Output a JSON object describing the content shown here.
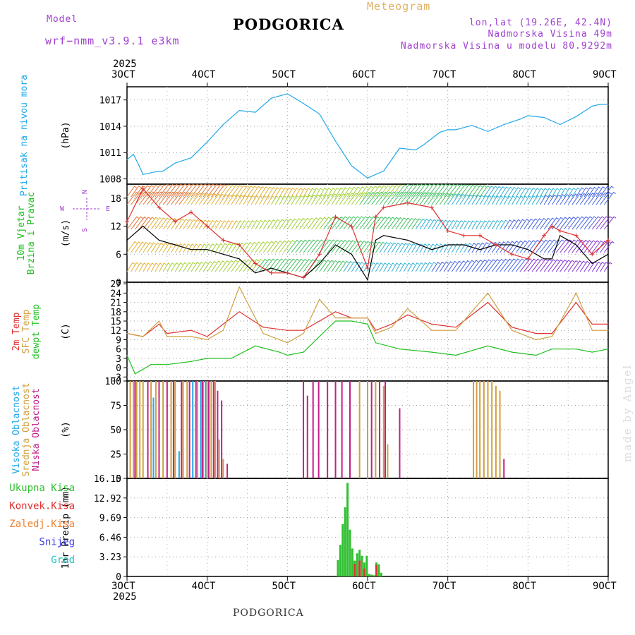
{
  "header": {
    "model_label": "Model",
    "model_name": "wrf−nmm_v3.9.1 e3km",
    "title": "PODGORICA",
    "meteogram_label": "Meteogram",
    "lonlat": "lon,lat (19.26E, 42.4N)",
    "elevation": "Nadmorska Visina 49m",
    "model_elevation": "Nadmorska Visina u modelu 80.9292m"
  },
  "footer": {
    "station": "PODGORICA"
  },
  "watermark": "made by Angel",
  "colors": {
    "pressure": "#20a8e8",
    "wind_speed": "#000000",
    "gust": "#e03030",
    "temp2m": "#e03030",
    "sfc": "#d0a040",
    "dewpt": "#20c020",
    "high_cloud": "#20a8e8",
    "mid_cloud": "#d0a040",
    "low_cloud": "#c0208a",
    "total_precip": "#30c030",
    "convective": "#e03030",
    "freezing": "#f08030",
    "snow": "#4040e0",
    "graupel": "#20c0c0",
    "purple_text": "#a040d0"
  },
  "time_axis": {
    "year": "2025",
    "labels": [
      "3OCT",
      "4OCT",
      "5OCT",
      "6OCT",
      "7OCT",
      "8OCT",
      "9OCT"
    ]
  },
  "chart_data": [
    {
      "type": "line",
      "id": "pressure",
      "title": "Pritisak na nivou mora",
      "ylabel": "(hPa)",
      "ylim": [
        1007.4,
        1018.5
      ],
      "yticks": [
        "1008",
        "1011",
        "1014",
        "1017"
      ],
      "ytick_values": [
        1008,
        1011,
        1014,
        1017
      ],
      "series": [
        {
          "name": "Pritisak na nivou mora",
          "color": "#20a8e8",
          "x": [
            0,
            0.08,
            0.15,
            0.2,
            0.35,
            0.45,
            0.6,
            0.8,
            1.0,
            1.2,
            1.4,
            1.6,
            1.8,
            2.0,
            2.2,
            2.4,
            2.6,
            2.8,
            3.0,
            3.2,
            3.4,
            3.6,
            3.7,
            3.8,
            3.9,
            4.0,
            4.1,
            4.3,
            4.5,
            4.7,
            4.9,
            5.0,
            5.2,
            5.4,
            5.6,
            5.8,
            5.9,
            6.0
          ],
          "values": [
            1010.2,
            1010.8,
            1009.5,
            1008.5,
            1008.8,
            1008.9,
            1009.8,
            1010.4,
            1012.2,
            1014.2,
            1015.8,
            1015.6,
            1017.2,
            1017.7,
            1016.6,
            1015.4,
            1012.3,
            1009.5,
            1008.1,
            1008.9,
            1011.5,
            1011.3,
            1011.9,
            1012.6,
            1013.3,
            1013.6,
            1013.6,
            1014.1,
            1013.4,
            1014.2,
            1014.8,
            1015.2,
            1015.0,
            1014.2,
            1015.1,
            1016.3,
            1016.5,
            1016.5
          ]
        }
      ]
    },
    {
      "type": "line",
      "id": "wind",
      "title": "10m Vjetar Brzina i Pravac",
      "title_lines": [
        "10m Vjetar",
        "Brzina i Pravac"
      ],
      "ylabel": "(m/s)",
      "ylim": [
        0,
        21
      ],
      "yticks": [
        "0",
        "6",
        "12",
        "18"
      ],
      "ytick_values": [
        0,
        6,
        12,
        18
      ],
      "compass_labels": [
        "N",
        "W",
        "<",
        "E",
        "S"
      ],
      "series": [
        {
          "name": "Brzina",
          "color": "#000000",
          "x": [
            0,
            0.2,
            0.4,
            0.6,
            0.8,
            1.0,
            1.2,
            1.4,
            1.6,
            1.8,
            2.0,
            2.2,
            2.4,
            2.6,
            2.8,
            3.0,
            3.1,
            3.2,
            3.5,
            3.8,
            4.0,
            4.2,
            4.4,
            4.6,
            4.8,
            5.0,
            5.2,
            5.3,
            5.4,
            5.6,
            5.8,
            6.0
          ],
          "values": [
            9,
            12,
            9,
            8,
            7,
            7,
            6,
            5,
            2,
            3,
            2,
            1,
            4,
            8,
            6,
            0.5,
            9,
            10,
            9,
            7,
            8,
            8,
            7,
            8,
            8,
            7,
            5,
            5,
            10,
            8,
            4,
            6
          ]
        },
        {
          "name": "Udari",
          "color": "#e03030",
          "x": [
            0,
            0.2,
            0.4,
            0.6,
            0.8,
            1.0,
            1.2,
            1.4,
            1.6,
            1.8,
            2.0,
            2.2,
            2.4,
            2.6,
            2.8,
            3.0,
            3.1,
            3.2,
            3.5,
            3.8,
            4.0,
            4.2,
            4.4,
            4.6,
            4.8,
            5.0,
            5.2,
            5.3,
            5.4,
            5.6,
            5.8,
            6.0
          ],
          "values": [
            13,
            20,
            16,
            13,
            15,
            12,
            9,
            8,
            4,
            2,
            2,
            1,
            6,
            14,
            12,
            3,
            14,
            16,
            17,
            16,
            11,
            10,
            10,
            8,
            6,
            5,
            10,
            12,
            11,
            10,
            6,
            9
          ]
        }
      ]
    },
    {
      "type": "line",
      "id": "temperature",
      "title_lines": [
        "2m Temp",
        "SFC Temp",
        "dewpt Temp"
      ],
      "ylabel": "(C)",
      "ylim": [
        -4.3,
        27.5
      ],
      "yticks": [
        "−3",
        "0",
        "3",
        "6",
        "9",
        "12",
        "15",
        "18",
        "21",
        "24",
        "27"
      ],
      "ytick_values": [
        -3,
        0,
        3,
        6,
        9,
        12,
        15,
        18,
        21,
        24,
        27
      ],
      "series": [
        {
          "name": "2m Temp",
          "color": "#e03030",
          "x": [
            0,
            0.2,
            0.4,
            0.5,
            0.8,
            1.0,
            1.2,
            1.4,
            1.7,
            2.0,
            2.2,
            2.4,
            2.6,
            2.8,
            3.0,
            3.1,
            3.3,
            3.5,
            3.8,
            4.1,
            4.5,
            4.8,
            5.1,
            5.3,
            5.6,
            5.8,
            6.0
          ],
          "values": [
            11,
            10,
            14,
            11,
            12,
            10,
            14,
            18,
            13,
            12,
            12,
            15,
            18,
            16,
            16,
            12,
            14,
            17,
            14,
            13,
            21,
            13,
            11,
            11,
            21,
            14,
            14
          ]
        },
        {
          "name": "SFC Temp",
          "color": "#d0a040",
          "x": [
            0,
            0.2,
            0.4,
            0.5,
            0.8,
            1.0,
            1.2,
            1.4,
            1.7,
            2.0,
            2.2,
            2.4,
            2.6,
            2.8,
            3.0,
            3.1,
            3.3,
            3.5,
            3.8,
            4.1,
            4.5,
            4.8,
            5.1,
            5.3,
            5.6,
            5.8,
            6.0
          ],
          "values": [
            11,
            10,
            15,
            10,
            10,
            9,
            12,
            26,
            11,
            8,
            11,
            22,
            16,
            16,
            16,
            11,
            13,
            19,
            12,
            12,
            24,
            12,
            9,
            10,
            24,
            12,
            12
          ]
        },
        {
          "name": "dewpt Temp",
          "color": "#20c020",
          "x": [
            0,
            0.1,
            0.3,
            0.5,
            0.8,
            1.0,
            1.3,
            1.6,
            1.9,
            2.0,
            2.2,
            2.4,
            2.6,
            2.8,
            3.0,
            3.1,
            3.4,
            3.8,
            4.1,
            4.5,
            4.8,
            5.1,
            5.3,
            5.6,
            5.8,
            6.0
          ],
          "values": [
            4,
            -2,
            1,
            1,
            2,
            3,
            3,
            7,
            5,
            4,
            5,
            10,
            15,
            15,
            14,
            8,
            6,
            5,
            4,
            7,
            5,
            4,
            6,
            6,
            5,
            6
          ]
        }
      ]
    },
    {
      "type": "bar",
      "id": "clouds",
      "title_lines": [
        "Visoka Oblacnost",
        "Srednja Oblacnost",
        "Niska Oblacnost"
      ],
      "ylabel": "(%)",
      "ylim": [
        0,
        100
      ],
      "yticks": [
        "0",
        "25",
        "50",
        "75",
        "100"
      ],
      "ytick_values": [
        0,
        25,
        50,
        75,
        100
      ],
      "series": [
        {
          "name": "Visoka Oblacnost",
          "color": "#20a8e8",
          "x": [
            0.33,
            0.65,
            0.82,
            0.92,
            0.98
          ],
          "values": [
            83,
            28,
            100,
            100,
            100
          ]
        },
        {
          "name": "Srednja Oblacnost",
          "color": "#d0a040",
          "x": [
            0.04,
            0.08,
            0.12,
            0.16,
            0.2,
            0.3,
            0.36,
            0.45,
            0.55,
            0.6,
            0.7,
            0.75,
            0.88,
            0.95,
            1.0,
            1.05,
            1.1,
            1.15,
            1.2,
            2.9,
            3.0,
            3.1,
            3.2,
            3.25,
            4.32,
            4.36,
            4.4,
            4.45,
            4.5,
            4.55,
            4.6,
            4.65
          ],
          "values": [
            100,
            100,
            100,
            100,
            100,
            100,
            100,
            100,
            100,
            100,
            100,
            100,
            100,
            100,
            100,
            100,
            100,
            40,
            20,
            100,
            100,
            100,
            95,
            35,
            100,
            100,
            100,
            100,
            100,
            100,
            95,
            90
          ]
        },
        {
          "name": "Niska Oblacnost",
          "color": "#c0208a",
          "x": [
            0.1,
            0.26,
            0.4,
            0.5,
            0.58,
            0.68,
            0.78,
            0.86,
            0.94,
            1.02,
            1.08,
            1.13,
            1.18,
            1.25,
            2.2,
            2.25,
            2.32,
            2.39,
            2.5,
            2.6,
            2.68,
            2.78,
            3.05,
            3.15,
            3.22,
            3.4,
            4.7
          ],
          "values": [
            100,
            100,
            100,
            100,
            100,
            100,
            100,
            100,
            100,
            100,
            100,
            90,
            80,
            15,
            100,
            85,
            100,
            100,
            100,
            100,
            100,
            100,
            100,
            100,
            100,
            72,
            20
          ]
        }
      ]
    },
    {
      "type": "bar",
      "id": "precip",
      "title_lines": [
        "Ukupna Kisa",
        "Konvek.Kisa",
        "Zaledj.Kisa",
        "Snijeg",
        "Grad"
      ],
      "ylabel": "1hr Precip (mm)",
      "ylim": [
        0,
        16.15
      ],
      "yticks": [
        "0",
        "3.23",
        "6.46",
        "9.69",
        "12.92",
        "16.15"
      ],
      "ytick_values": [
        0,
        3.23,
        6.46,
        9.69,
        12.92,
        16.15
      ],
      "series": [
        {
          "name": "Ukupna Kisa",
          "color": "#30c030",
          "x": [
            2.63,
            2.66,
            2.69,
            2.72,
            2.75,
            2.78,
            2.81,
            2.84,
            2.87,
            2.9,
            2.93,
            2.96,
            2.99,
            3.02,
            3.05,
            3.08,
            3.11,
            3.14,
            3.17
          ],
          "values": [
            2.7,
            5.2,
            8.6,
            11.4,
            15.4,
            7.7,
            4.6,
            2.6,
            3.8,
            4.4,
            3.4,
            2.3,
            3.4,
            0.4,
            0.3,
            0.2,
            2.3,
            2.0,
            0.6
          ]
        },
        {
          "name": "Konvek.Kisa",
          "color": "#e03030",
          "x": [
            2.84,
            2.9,
            2.96,
            3.11
          ],
          "values": [
            2.1,
            2.6,
            1.3,
            1.9
          ]
        },
        {
          "name": "Zaledj.Kisa",
          "color": "#f08030",
          "x": [],
          "values": []
        },
        {
          "name": "Snijeg",
          "color": "#4040e0",
          "x": [],
          "values": []
        },
        {
          "name": "Grad",
          "color": "#20c0c0",
          "x": [],
          "values": []
        }
      ]
    }
  ]
}
